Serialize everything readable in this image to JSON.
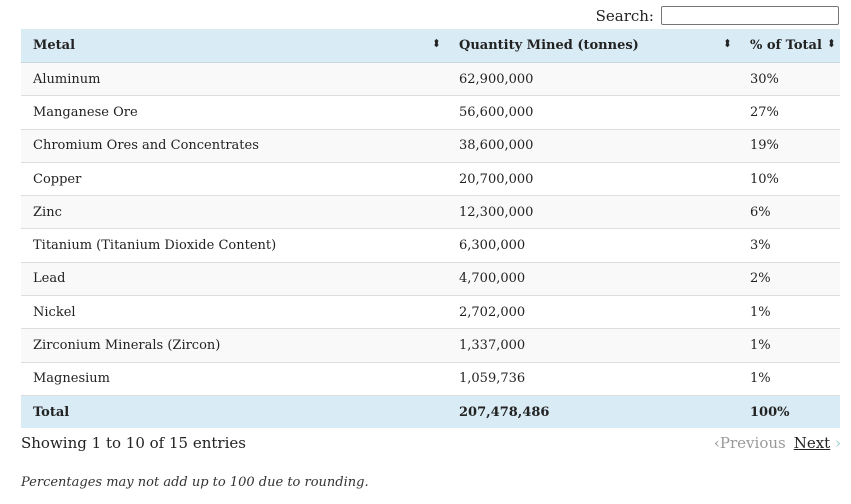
{
  "search": {
    "label": "Search:",
    "value": ""
  },
  "columns": [
    "Metal",
    "Quantity Mined (tonnes)",
    "% of Total"
  ],
  "rows": [
    [
      "Aluminum",
      "62,900,000",
      "30%"
    ],
    [
      "Manganese Ore",
      "56,600,000",
      "27%"
    ],
    [
      "Chromium Ores and Concentrates",
      "38,600,000",
      "19%"
    ],
    [
      "Copper",
      "20,700,000",
      "10%"
    ],
    [
      "Zinc",
      "12,300,000",
      "6%"
    ],
    [
      "Titanium (Titanium Dioxide Content)",
      "6,300,000",
      "3%"
    ],
    [
      "Lead",
      "4,700,000",
      "2%"
    ],
    [
      "Nickel",
      "2,702,000",
      "1%"
    ],
    [
      "Zirconium Minerals (Zircon)",
      "1,337,000",
      "1%"
    ],
    [
      "Magnesium",
      "1,059,736",
      "1%"
    ]
  ],
  "total": [
    "Total",
    "207,478,486",
    "100%"
  ],
  "info": "Showing 1 to 10 of 15 entries",
  "pager": {
    "previous": "Previous",
    "next": "Next"
  },
  "note": "Percentages may not add up to 100 due to rounding."
}
